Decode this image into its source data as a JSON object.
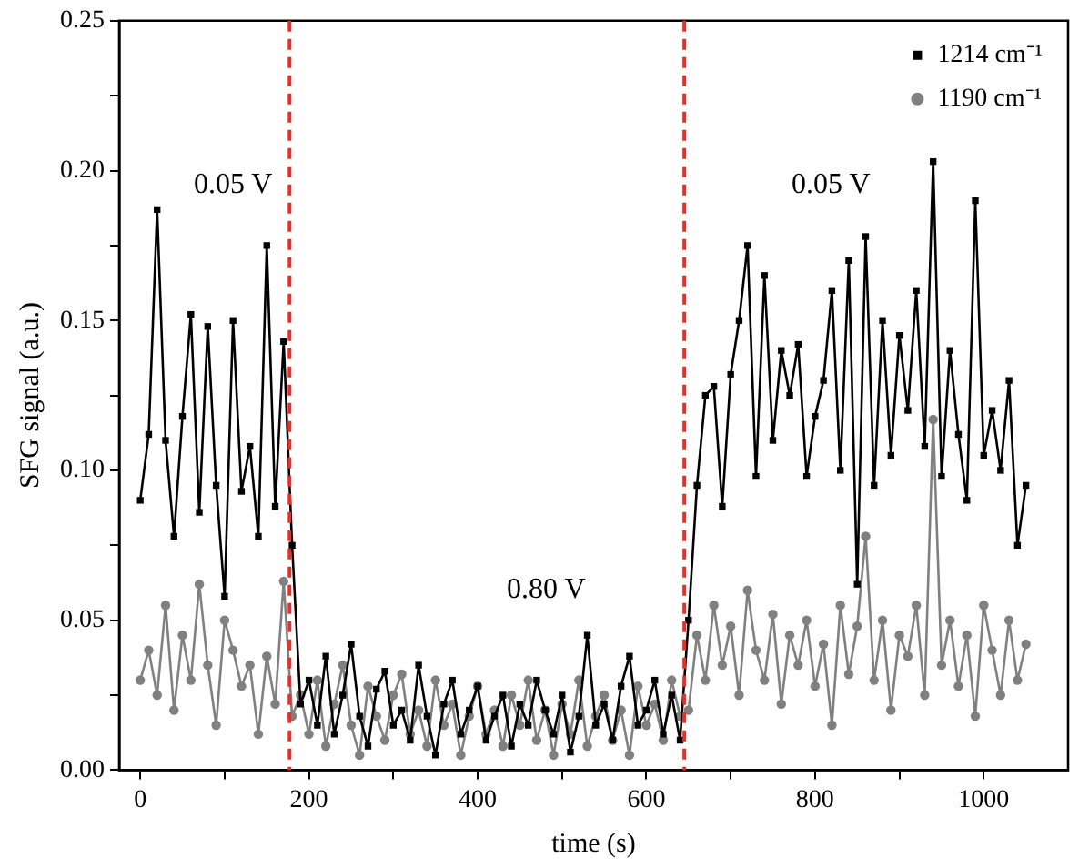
{
  "chart_data": {
    "type": "line",
    "xlabel": "time (s)",
    "ylabel": "SFG signal (a.u.)",
    "x": [
      0,
      10,
      20,
      30,
      40,
      50,
      60,
      70,
      80,
      90,
      100,
      110,
      120,
      130,
      140,
      150,
      160,
      170,
      180,
      190,
      200,
      210,
      220,
      230,
      240,
      250,
      260,
      270,
      280,
      290,
      300,
      310,
      320,
      330,
      340,
      350,
      360,
      370,
      380,
      390,
      400,
      410,
      420,
      430,
      440,
      450,
      460,
      470,
      480,
      490,
      500,
      510,
      520,
      530,
      540,
      550,
      560,
      570,
      580,
      590,
      600,
      610,
      620,
      630,
      640,
      650,
      660,
      670,
      680,
      690,
      700,
      710,
      720,
      730,
      740,
      750,
      760,
      770,
      780,
      790,
      800,
      810,
      820,
      830,
      840,
      850,
      860,
      870,
      880,
      890,
      900,
      910,
      920,
      930,
      940,
      950,
      960,
      970,
      980,
      990,
      1000,
      1010,
      1020,
      1030,
      1040,
      1050
    ],
    "series": [
      {
        "name": "1214 cm⁻¹",
        "color": "#000000",
        "marker": "square",
        "values": [
          0.09,
          0.112,
          0.187,
          0.11,
          0.078,
          0.118,
          0.152,
          0.086,
          0.148,
          0.095,
          0.058,
          0.15,
          0.093,
          0.108,
          0.078,
          0.175,
          0.088,
          0.143,
          0.075,
          0.022,
          0.03,
          0.015,
          0.038,
          0.012,
          0.025,
          0.042,
          0.018,
          0.008,
          0.027,
          0.033,
          0.015,
          0.02,
          0.01,
          0.035,
          0.018,
          0.005,
          0.022,
          0.03,
          0.012,
          0.02,
          0.028,
          0.01,
          0.018,
          0.025,
          0.008,
          0.022,
          0.015,
          0.03,
          0.02,
          0.012,
          0.025,
          0.006,
          0.018,
          0.045,
          0.015,
          0.022,
          0.01,
          0.028,
          0.038,
          0.015,
          0.02,
          0.03,
          0.012,
          0.025,
          0.01,
          0.05,
          0.095,
          0.125,
          0.128,
          0.088,
          0.132,
          0.15,
          0.175,
          0.098,
          0.165,
          0.11,
          0.14,
          0.125,
          0.142,
          0.098,
          0.118,
          0.13,
          0.16,
          0.1,
          0.17,
          0.062,
          0.178,
          0.095,
          0.15,
          0.105,
          0.145,
          0.12,
          0.16,
          0.108,
          0.203,
          0.098,
          0.14,
          0.112,
          0.09,
          0.19,
          0.105,
          0.12,
          0.1,
          0.13,
          0.075,
          0.095
        ]
      },
      {
        "name": "1190 cm⁻¹",
        "color": "#808080",
        "marker": "circle",
        "values": [
          0.03,
          0.04,
          0.025,
          0.055,
          0.02,
          0.045,
          0.03,
          0.062,
          0.035,
          0.015,
          0.05,
          0.04,
          0.028,
          0.035,
          0.012,
          0.038,
          0.022,
          0.063,
          0.018,
          0.025,
          0.012,
          0.03,
          0.008,
          0.022,
          0.035,
          0.015,
          0.005,
          0.028,
          0.018,
          0.01,
          0.025,
          0.032,
          0.012,
          0.02,
          0.008,
          0.03,
          0.015,
          0.022,
          0.005,
          0.018,
          0.028,
          0.012,
          0.02,
          0.008,
          0.025,
          0.015,
          0.03,
          0.01,
          0.02,
          0.005,
          0.022,
          0.012,
          0.03,
          0.008,
          0.018,
          0.025,
          0.01,
          0.02,
          0.005,
          0.028,
          0.015,
          0.022,
          0.01,
          0.03,
          0.018,
          0.02,
          0.045,
          0.03,
          0.055,
          0.035,
          0.048,
          0.025,
          0.06,
          0.04,
          0.03,
          0.052,
          0.022,
          0.045,
          0.035,
          0.05,
          0.028,
          0.042,
          0.015,
          0.055,
          0.032,
          0.048,
          0.078,
          0.03,
          0.05,
          0.02,
          0.045,
          0.038,
          0.055,
          0.025,
          0.117,
          0.035,
          0.05,
          0.028,
          0.045,
          0.018,
          0.055,
          0.04,
          0.025,
          0.05,
          0.03,
          0.042
        ]
      }
    ],
    "xlim": [
      -25,
      1100
    ],
    "ylim": [
      0,
      0.25
    ],
    "xticks": [
      0,
      {
        "value": 100,
        "label": null
      },
      200,
      {
        "value": 300,
        "label": null
      },
      400,
      {
        "value": 500,
        "label": null
      },
      600,
      {
        "value": 700,
        "label": null
      },
      800,
      {
        "value": 900,
        "label": null
      },
      1000
    ],
    "yticks": [
      {
        "value": 0,
        "label": "0.00"
      },
      {
        "value": 0.025,
        "label": null
      },
      {
        "value": 0.05,
        "label": "0.05"
      },
      {
        "value": 0.075,
        "label": null
      },
      {
        "value": 0.1,
        "label": "0.10"
      },
      {
        "value": 0.125,
        "label": null
      },
      {
        "value": 0.15,
        "label": "0.15"
      },
      {
        "value": 0.175,
        "label": null
      },
      {
        "value": 0.2,
        "label": "0.20"
      },
      {
        "value": 0.225,
        "label": null
      },
      {
        "value": 0.25,
        "label": "0.25"
      }
    ],
    "ref_lines": [
      {
        "axis": "x",
        "value": 177,
        "color": "#e8302a",
        "line_style": "dashed"
      },
      {
        "axis": "x",
        "value": 645,
        "color": "#e8302a",
        "line_style": "dashed"
      }
    ],
    "annotations": [
      "0.05 V",
      "0.80 V",
      "0.05 V"
    ],
    "legend": "top right",
    "grid": false,
    "line_style": "solid"
  }
}
